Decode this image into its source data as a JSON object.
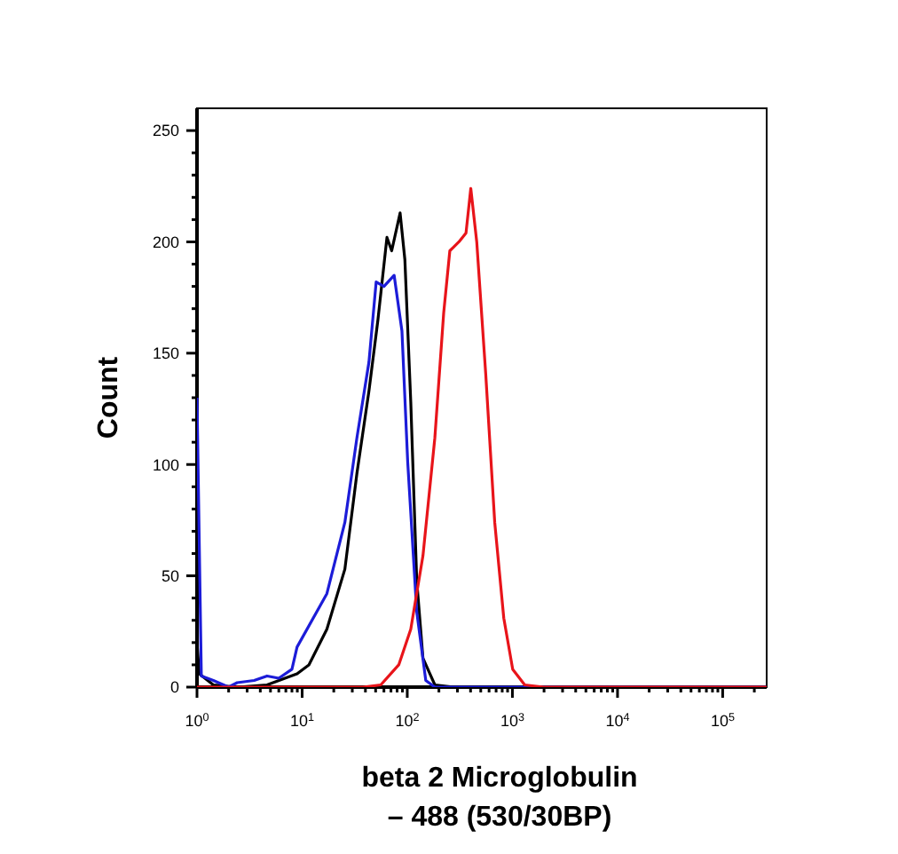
{
  "chart_data": {
    "type": "line",
    "xlabel": "beta 2 Microglobulin\n– 488 (530/30BP)",
    "ylabel": "Count",
    "log": "x",
    "xlim": [
      1,
      262144
    ],
    "ylim": [
      0,
      260
    ],
    "xticks": [
      {
        "value": 1,
        "label": "10$^{0}$"
      },
      {
        "value": 2,
        "label": null
      },
      {
        "value": 3,
        "label": null
      },
      {
        "value": 4,
        "label": null
      },
      {
        "value": 5,
        "label": null
      },
      {
        "value": 6,
        "label": null
      },
      {
        "value": 7,
        "label": null
      },
      {
        "value": 8,
        "label": null
      },
      {
        "value": 9,
        "label": null
      },
      {
        "value": 10,
        "label": "10$^{1}$"
      },
      {
        "value": 20,
        "label": null
      },
      {
        "value": 30,
        "label": null
      },
      {
        "value": 40,
        "label": null
      },
      {
        "value": 50,
        "label": null
      },
      {
        "value": 60,
        "label": null
      },
      {
        "value": 70,
        "label": null
      },
      {
        "value": 80,
        "label": null
      },
      {
        "value": 90,
        "label": null
      },
      {
        "value": 100,
        "label": "10$^{2}$"
      },
      {
        "value": 200,
        "label": null
      },
      {
        "value": 300,
        "label": null
      },
      {
        "value": 400,
        "label": null
      },
      {
        "value": 500,
        "label": null
      },
      {
        "value": 600,
        "label": null
      },
      {
        "value": 700,
        "label": null
      },
      {
        "value": 800,
        "label": null
      },
      {
        "value": 900,
        "label": null
      },
      {
        "value": 1000,
        "label": "10$^{3}$"
      },
      {
        "value": 2000,
        "label": null
      },
      {
        "value": 3000,
        "label": null
      },
      {
        "value": 4000,
        "label": null
      },
      {
        "value": 5000,
        "label": null
      },
      {
        "value": 6000,
        "label": null
      },
      {
        "value": 7000,
        "label": null
      },
      {
        "value": 8000,
        "label": null
      },
      {
        "value": 9000,
        "label": null
      },
      {
        "value": 10000,
        "label": "10$^{4}$"
      },
      {
        "value": 20000,
        "label": null
      },
      {
        "value": 30000,
        "label": null
      },
      {
        "value": 40000,
        "label": null
      },
      {
        "value": 50000,
        "label": null
      },
      {
        "value": 60000,
        "label": null
      },
      {
        "value": 70000,
        "label": null
      },
      {
        "value": 80000,
        "label": null
      },
      {
        "value": 90000,
        "label": null
      },
      {
        "value": 100000,
        "label": "10$^{5}$"
      },
      {
        "value": 200000,
        "label": null
      }
    ],
    "yticks": [
      0,
      {
        "value": 10,
        "label": null
      },
      {
        "value": 20,
        "label": null
      },
      {
        "value": 30,
        "label": null
      },
      {
        "value": 40,
        "label": null
      },
      50,
      {
        "value": 60,
        "label": null
      },
      {
        "value": 70,
        "label": null
      },
      {
        "value": 80,
        "label": null
      },
      {
        "value": 90,
        "label": null
      },
      100,
      {
        "value": 110,
        "label": null
      },
      {
        "value": 120,
        "label": null
      },
      {
        "value": 130,
        "label": null
      },
      {
        "value": 140,
        "label": null
      },
      150,
      {
        "value": 160,
        "label": null
      },
      {
        "value": 170,
        "label": null
      },
      {
        "value": 180,
        "label": null
      },
      {
        "value": 190,
        "label": null
      },
      200,
      {
        "value": 210,
        "label": null
      },
      {
        "value": 220,
        "label": null
      },
      {
        "value": 230,
        "label": null
      },
      {
        "value": 240,
        "label": null
      },
      250
    ],
    "grid": false,
    "marker": "none",
    "line_style": "solid",
    "series": [
      {
        "color": "#000000",
        "x": [
          1,
          1.05,
          1.43,
          2.41,
          4.64,
          8.95,
          11.6,
          17.2,
          25.5,
          33.2,
          43.2,
          52.6,
          64.1,
          71.1,
          85.5,
          94.9,
          108,
          123,
          141,
          183,
          271,
          262144
        ],
        "values": [
          20,
          6,
          1,
          0,
          1,
          6,
          10,
          26,
          53,
          96,
          133,
          165,
          202,
          196,
          213,
          192,
          128,
          48,
          13,
          1,
          0,
          0
        ]
      },
      {
        "color": "#1c1cd8",
        "x": [
          1,
          1.1,
          1.43,
          2,
          2.41,
          3.5,
          4.64,
          6,
          8,
          8.95,
          17.2,
          25.5,
          33.2,
          43.2,
          50.6,
          60,
          75,
          89,
          101,
          123,
          150,
          183,
          262144
        ],
        "values": [
          130,
          5,
          3,
          0,
          2,
          3,
          5,
          4,
          8,
          18,
          42,
          74,
          112,
          146,
          182,
          180,
          185,
          160,
          101,
          34,
          3,
          0,
          0
        ]
      },
      {
        "color": "#e8141a",
        "x": [
          1,
          37.8,
          56,
          83,
          108,
          141,
          183,
          222,
          254,
          310,
          362,
          402,
          458,
          557,
          679,
          828,
          1007,
          1309,
          2000,
          262144
        ],
        "values": [
          0,
          0,
          1,
          10,
          26,
          59,
          112,
          168,
          196,
          200,
          204,
          224,
          200,
          141,
          74,
          31,
          8,
          1,
          0,
          0
        ]
      }
    ]
  }
}
